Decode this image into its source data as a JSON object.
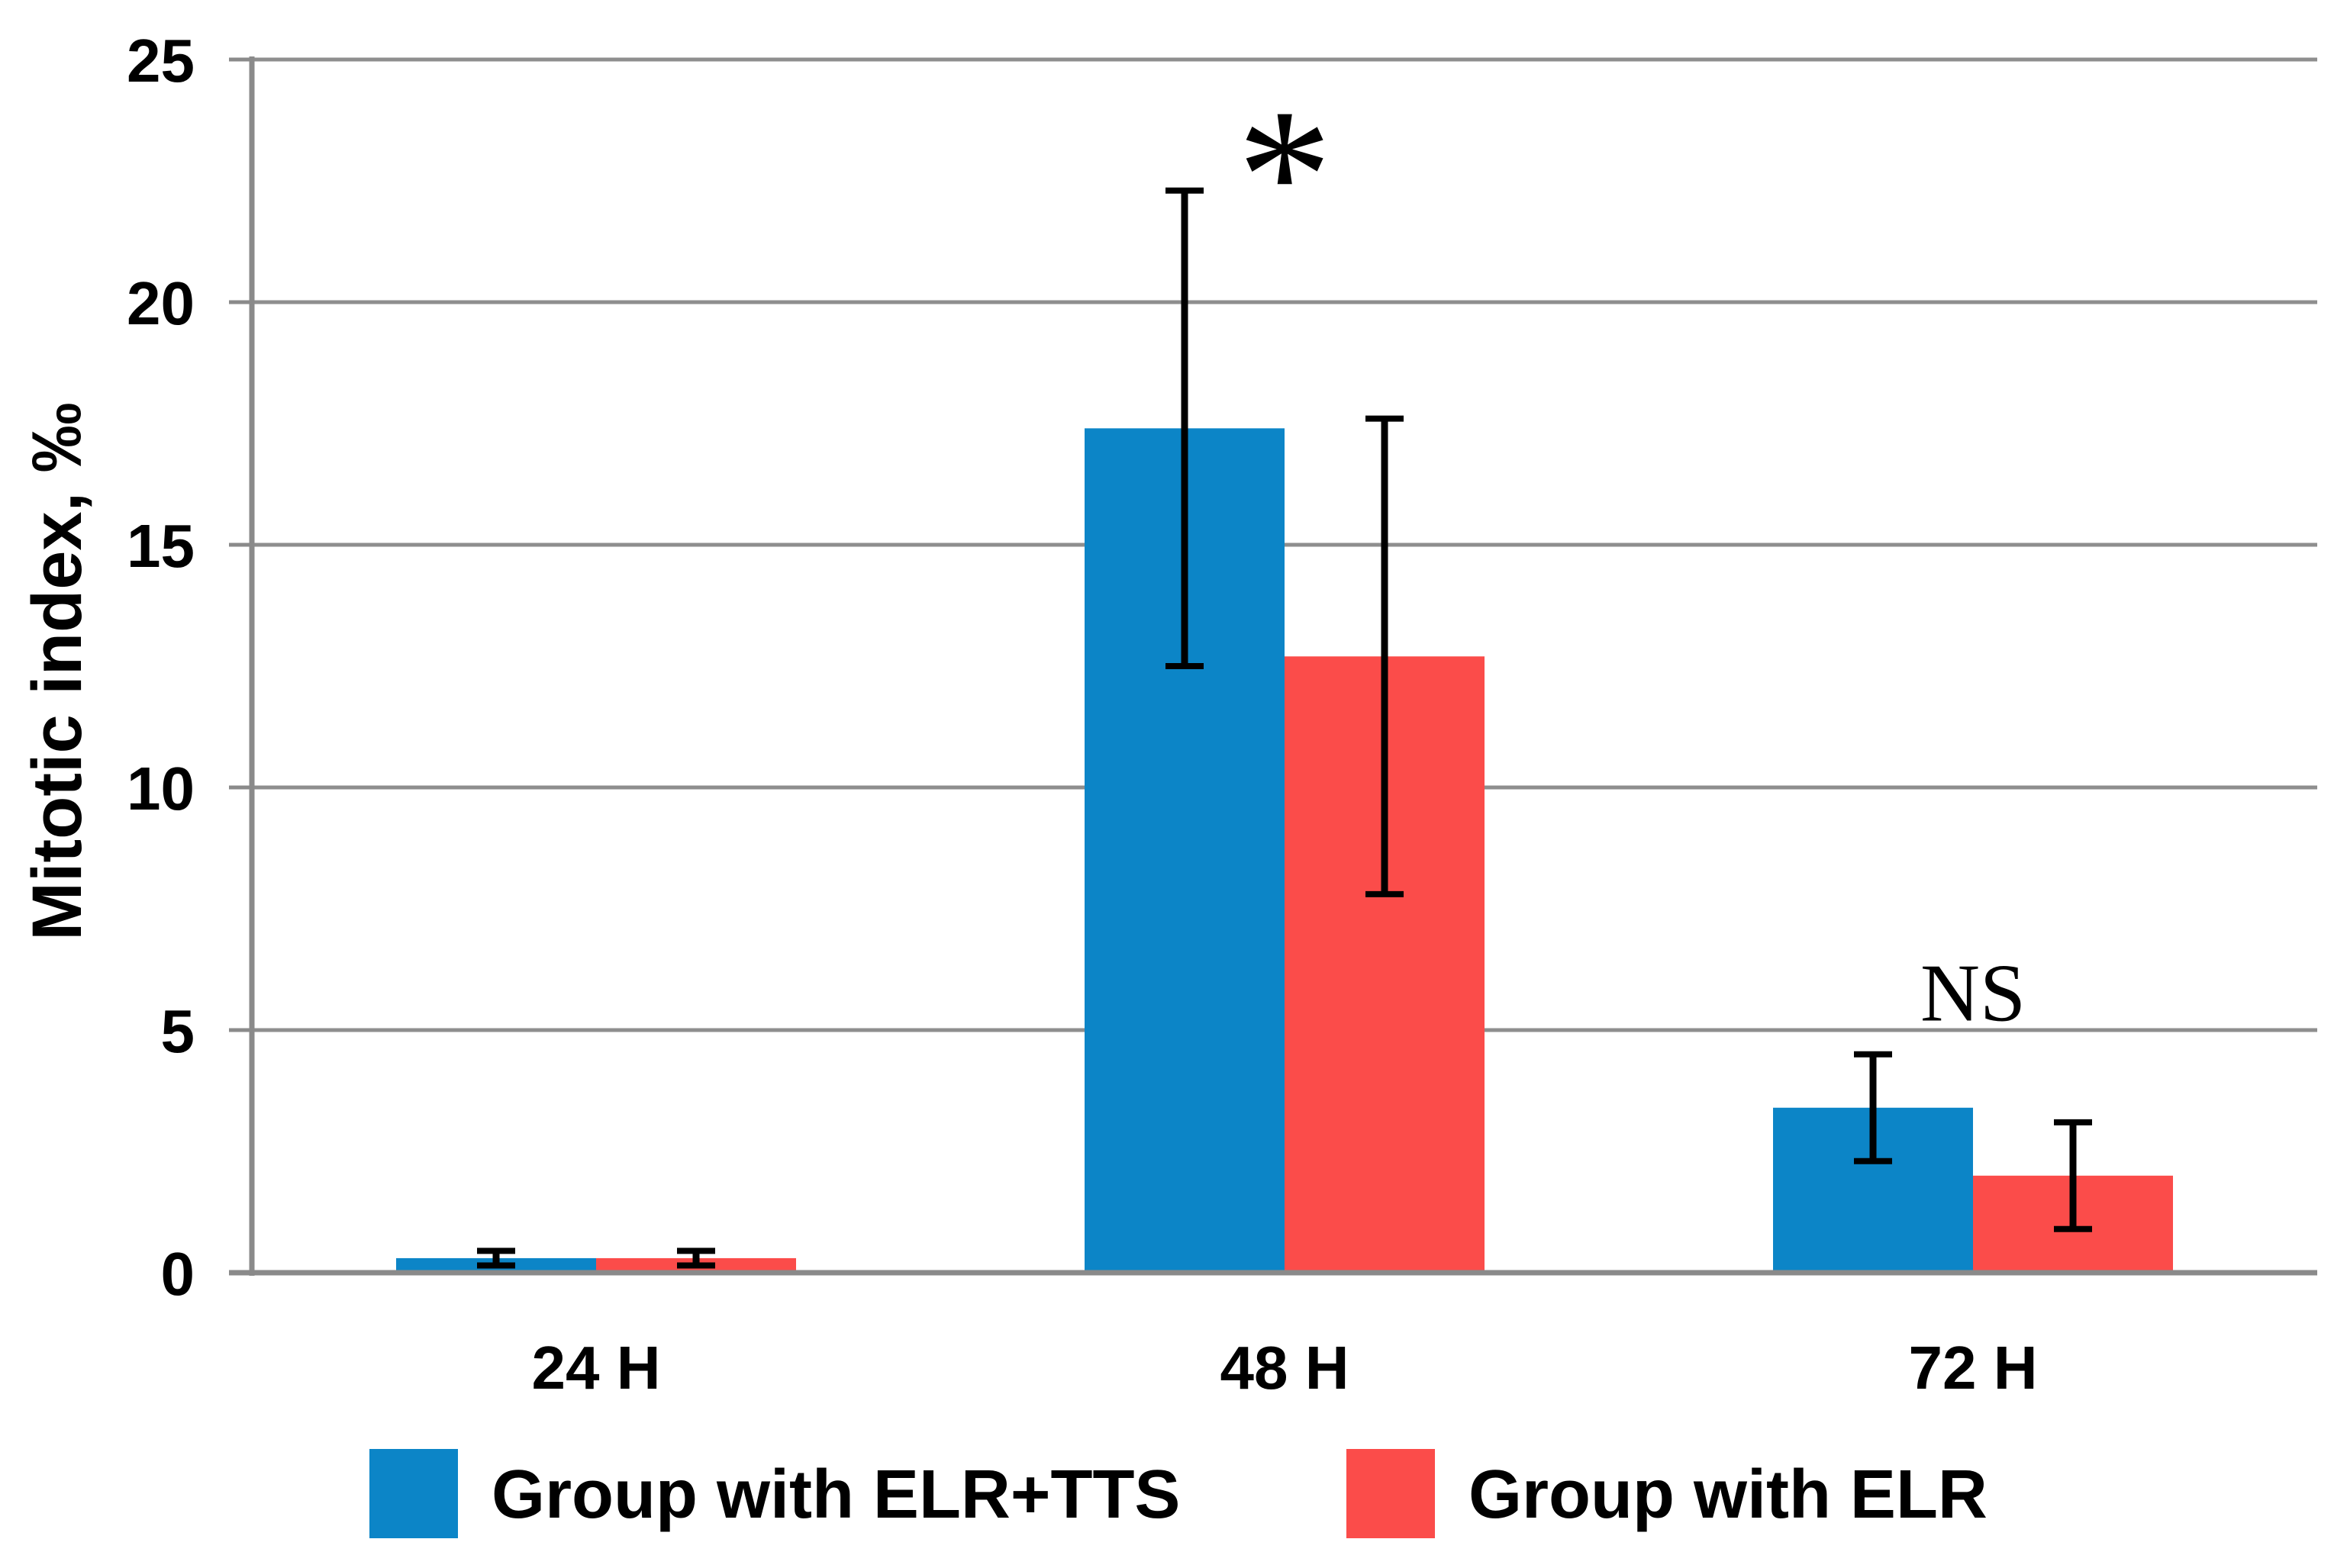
{
  "chart_data": {
    "type": "bar",
    "title": "",
    "ylabel": "Mitotic index, ‰",
    "xlabel": "",
    "ylim": [
      0,
      25
    ],
    "yticks": [
      0,
      5,
      10,
      15,
      20,
      25
    ],
    "grid": true,
    "legend_position": "bottom",
    "categories": [
      "24 H",
      "48 H",
      "72 H"
    ],
    "series": [
      {
        "name": "Group with ELR+TTS",
        "color": "#0c85c7",
        "values": [
          0.3,
          17.4,
          3.4
        ],
        "errors": [
          0.15,
          4.9,
          1.1
        ]
      },
      {
        "name": "Group with ELR",
        "color": "#fb4c4a",
        "values": [
          0.3,
          12.7,
          2.0
        ],
        "errors": [
          0.15,
          4.9,
          1.1
        ]
      }
    ],
    "annotations": [
      {
        "text": "*",
        "category_index": 1,
        "y": 21.3,
        "font_size": 250
      },
      {
        "text": "NS",
        "category_index": 2,
        "y": 5.2,
        "font_size": 108
      }
    ],
    "colors": {
      "axis": "#8a8a8a",
      "gridline": "#8e8e8e",
      "error_bar": "#000000",
      "text": "#000000",
      "background": "#ffffff"
    }
  }
}
